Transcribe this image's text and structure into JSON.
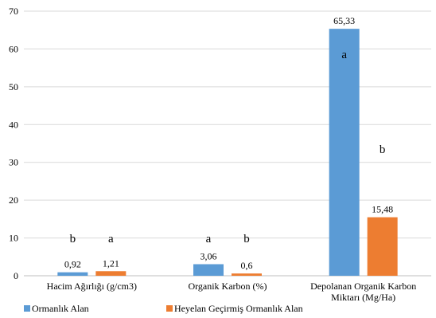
{
  "chart_data": {
    "type": "bar",
    "categories": [
      [
        "Hacim Ağırlığı (g/cm3)"
      ],
      [
        "Organik Karbon (%)"
      ],
      [
        "Depolanan Organik Karbon",
        "Miktarı (Mg/Ha)"
      ]
    ],
    "series": [
      {
        "name": "Ormanlık Alan",
        "color": "#5B9BD5",
        "values": [
          0.92,
          3.06,
          65.33
        ],
        "value_labels": [
          "0,92",
          "3,06",
          "65,33"
        ],
        "significance": [
          "b",
          "a",
          "a"
        ]
      },
      {
        "name": "Heyelan Geçirmiş Ormanlık Alan",
        "color": "#ED7D31",
        "values": [
          1.21,
          0.6,
          15.48
        ],
        "value_labels": [
          "1,21",
          "0,6",
          "15,48"
        ],
        "significance": [
          "a",
          "b",
          "b"
        ]
      }
    ],
    "significance_positions": [
      [
        9.9,
        9.9
      ],
      [
        9.9,
        9.9
      ],
      [
        58.6,
        33.5
      ]
    ],
    "ylim": [
      0,
      70
    ],
    "yticks": [
      0,
      10,
      20,
      30,
      40,
      50,
      60,
      70
    ],
    "grid": true,
    "legend": "bottom-left"
  }
}
